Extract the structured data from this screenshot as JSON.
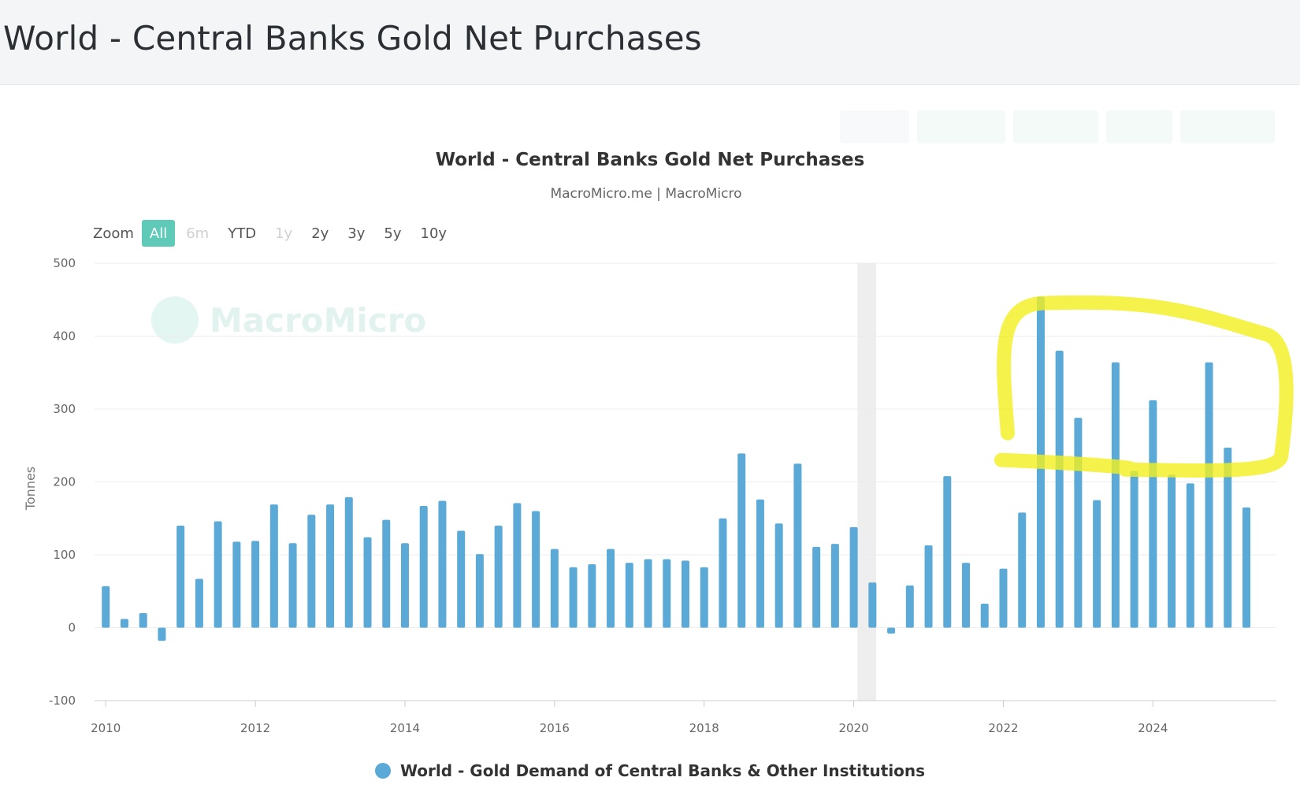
{
  "page": {
    "title": "World - Central Banks Gold Net Purchases"
  },
  "zoom": {
    "label": "Zoom",
    "options": [
      "All",
      "6m",
      "YTD",
      "1y",
      "2y",
      "3y",
      "5y",
      "10y"
    ],
    "selected": "All",
    "disabled": [
      "6m",
      "1y"
    ]
  },
  "watermark": {
    "text": "MacroMicro"
  },
  "colors": {
    "bar": "#5aa9d6",
    "highlight": "#f2f01e",
    "zoom_active": "#5fcab8",
    "grid": "#ececec"
  },
  "chart_data": {
    "type": "bar",
    "title": "World - Central Banks Gold Net Purchases",
    "subtitle": "MacroMicro.me | MacroMicro",
    "ylabel": "Tonnes",
    "xlabel": "",
    "ylim": [
      -100,
      500
    ],
    "yticks": [
      -100,
      0,
      100,
      200,
      300,
      400,
      500
    ],
    "xlim": [
      2009.85,
      2025.65
    ],
    "xticks": [
      2010,
      2012,
      2014,
      2016,
      2018,
      2020,
      2022,
      2024
    ],
    "grid": true,
    "legend_position": "bottom-center",
    "recession_band": {
      "from": 2020.05,
      "to": 2020.3
    },
    "highlight_range": {
      "from": 2022.5,
      "to": 2025.25,
      "approx_y": [
        230,
        440
      ]
    },
    "series": [
      {
        "name": "World - Gold Demand of Central Banks & Other Institutions",
        "x": [
          2010.0,
          2010.25,
          2010.5,
          2010.75,
          2011.0,
          2011.25,
          2011.5,
          2011.75,
          2012.0,
          2012.25,
          2012.5,
          2012.75,
          2013.0,
          2013.25,
          2013.5,
          2013.75,
          2014.0,
          2014.25,
          2014.5,
          2014.75,
          2015.0,
          2015.25,
          2015.5,
          2015.75,
          2016.0,
          2016.25,
          2016.5,
          2016.75,
          2017.0,
          2017.25,
          2017.5,
          2017.75,
          2018.0,
          2018.25,
          2018.5,
          2018.75,
          2019.0,
          2019.25,
          2019.5,
          2019.75,
          2020.0,
          2020.25,
          2020.5,
          2020.75,
          2021.0,
          2021.25,
          2021.5,
          2021.75,
          2022.0,
          2022.25,
          2022.5,
          2022.75,
          2023.0,
          2023.25,
          2023.5,
          2023.75,
          2024.0,
          2024.25,
          2024.5,
          2024.75,
          2025.0,
          2025.25
        ],
        "values": [
          57,
          12,
          20,
          -18,
          140,
          67,
          146,
          118,
          119,
          169,
          116,
          155,
          169,
          179,
          124,
          148,
          116,
          167,
          174,
          133,
          101,
          140,
          171,
          160,
          108,
          83,
          87,
          108,
          89,
          94,
          94,
          92,
          83,
          150,
          239,
          176,
          143,
          225,
          111,
          115,
          138,
          62,
          -8,
          58,
          113,
          208,
          89,
          33,
          81,
          158,
          454,
          380,
          288,
          175,
          364,
          215,
          312,
          210,
          198,
          364,
          247,
          165
        ]
      }
    ]
  }
}
